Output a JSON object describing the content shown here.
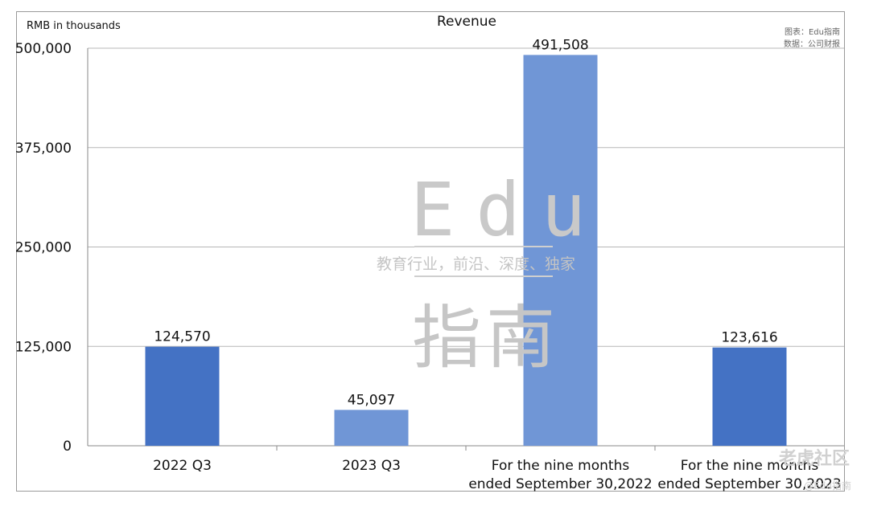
{
  "chart_data": {
    "type": "bar",
    "title": "Revenue",
    "unit_label": "RMB in thousands",
    "credits": [
      "图表：Edu指南",
      "数据：公司财报"
    ],
    "categories": [
      [
        "2022 Q3"
      ],
      [
        "2023 Q3"
      ],
      [
        "For the nine months",
        "ended September 30,2022"
      ],
      [
        "For the nine months",
        "ended September 30,2023"
      ]
    ],
    "values": [
      124570,
      45097,
      491508,
      123616
    ],
    "value_labels": [
      "124,570",
      "45,097",
      "491,508",
      "123,616"
    ],
    "yticks": [
      "0",
      "125,000",
      "250,000",
      "375,000",
      "500,000"
    ],
    "ylim": [
      0,
      500000
    ],
    "grid": true,
    "bar_colors": [
      "#4472c4",
      "#7096d6",
      "#7096d6",
      "#4472c4"
    ]
  },
  "watermark": {
    "letters": "Edu",
    "tagline": "教育行业，前沿、深度、独家",
    "chinese": "指南",
    "site": "老虎社区",
    "site_handle": "@Edu指南"
  }
}
